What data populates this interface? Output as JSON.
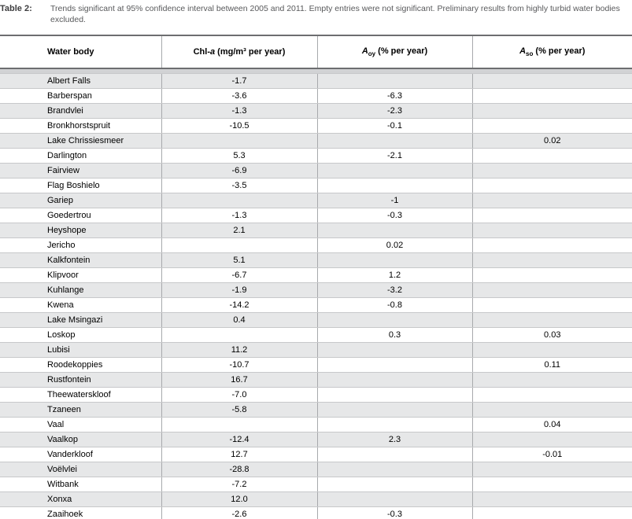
{
  "table": {
    "label": "Table 2:",
    "caption": "Trends significant at 95% confidence interval between 2005 and 2011. Empty entries were not significant. Preliminary results from highly turbid water bodies excluded.",
    "columns": {
      "water_body": {
        "label": "Water body"
      },
      "chl": {
        "prefix": "Chl-",
        "em": "a",
        "suffix": " (mg/m³ per year)"
      },
      "aoy": {
        "em": "A",
        "sub": "oy",
        "suffix": " (% per year)"
      },
      "aso": {
        "em": "A",
        "sub": "so",
        "suffix": " (% per year)"
      }
    },
    "rows": [
      {
        "water_body": "Albert Falls",
        "chl": "-1.7",
        "aoy": "",
        "aso": ""
      },
      {
        "water_body": "Barberspan",
        "chl": "-3.6",
        "aoy": "-6.3",
        "aso": ""
      },
      {
        "water_body": "Brandvlei",
        "chl": "-1.3",
        "aoy": "-2.3",
        "aso": ""
      },
      {
        "water_body": "Bronkhorstspruit",
        "chl": "-10.5",
        "aoy": "-0.1",
        "aso": ""
      },
      {
        "water_body": "Lake Chrissiesmeer",
        "chl": "",
        "aoy": "",
        "aso": "0.02"
      },
      {
        "water_body": "Darlington",
        "chl": "5.3",
        "aoy": "-2.1",
        "aso": ""
      },
      {
        "water_body": "Fairview",
        "chl": "-6.9",
        "aoy": "",
        "aso": ""
      },
      {
        "water_body": "Flag Boshielo",
        "chl": "-3.5",
        "aoy": "",
        "aso": ""
      },
      {
        "water_body": "Gariep",
        "chl": "",
        "aoy": "-1",
        "aso": ""
      },
      {
        "water_body": "Goedertrou",
        "chl": "-1.3",
        "aoy": "-0.3",
        "aso": ""
      },
      {
        "water_body": "Heyshope",
        "chl": "2.1",
        "aoy": "",
        "aso": ""
      },
      {
        "water_body": "Jericho",
        "chl": "",
        "aoy": "0.02",
        "aso": ""
      },
      {
        "water_body": "Kalkfontein",
        "chl": "5.1",
        "aoy": "",
        "aso": ""
      },
      {
        "water_body": "Klipvoor",
        "chl": "-6.7",
        "aoy": "1.2",
        "aso": ""
      },
      {
        "water_body": "Kuhlange",
        "chl": "-1.9",
        "aoy": "-3.2",
        "aso": ""
      },
      {
        "water_body": "Kwena",
        "chl": "-14.2",
        "aoy": "-0.8",
        "aso": ""
      },
      {
        "water_body": "Lake Msingazi",
        "chl": "0.4",
        "aoy": "",
        "aso": ""
      },
      {
        "water_body": "Loskop",
        "chl": "",
        "aoy": "0.3",
        "aso": "0.03"
      },
      {
        "water_body": "Lubisi",
        "chl": "11.2",
        "aoy": "",
        "aso": ""
      },
      {
        "water_body": "Roodekoppies",
        "chl": "-10.7",
        "aoy": "",
        "aso": "0.11"
      },
      {
        "water_body": "Rustfontein",
        "chl": "16.7",
        "aoy": "",
        "aso": ""
      },
      {
        "water_body": "Theewaterskloof",
        "chl": "-7.0",
        "aoy": "",
        "aso": ""
      },
      {
        "water_body": "Tzaneen",
        "chl": "-5.8",
        "aoy": "",
        "aso": ""
      },
      {
        "water_body": "Vaal",
        "chl": "",
        "aoy": "",
        "aso": "0.04"
      },
      {
        "water_body": "Vaalkop",
        "chl": "-12.4",
        "aoy": "2.3",
        "aso": ""
      },
      {
        "water_body": "Vanderkloof",
        "chl": "12.7",
        "aoy": "",
        "aso": "-0.01"
      },
      {
        "water_body": "Voëlvlei",
        "chl": "-28.8",
        "aoy": "",
        "aso": ""
      },
      {
        "water_body": "Witbank",
        "chl": "-7.2",
        "aoy": "",
        "aso": ""
      },
      {
        "water_body": "Xonxa",
        "chl": "12.0",
        "aoy": "",
        "aso": ""
      },
      {
        "water_body": "Zaaihoek",
        "chl": "-2.6",
        "aoy": "-0.3",
        "aso": ""
      }
    ]
  }
}
